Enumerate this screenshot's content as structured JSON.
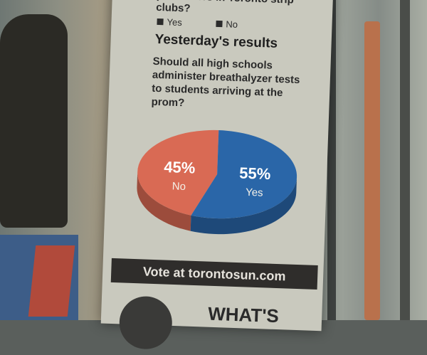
{
  "top_question": {
    "partial_text": "performers in Toronto strip clubs?",
    "options": [
      "Yes",
      "No"
    ]
  },
  "results": {
    "heading": "Yesterday's results",
    "question": "Should all high schools administer breathalyzer tests to students arriving at the prom?"
  },
  "chart_data": {
    "type": "pie",
    "categories": [
      "No",
      "Yes"
    ],
    "values": [
      45,
      55
    ],
    "labels": [
      "45%",
      "55%"
    ],
    "colors": [
      "#d96a54",
      "#2a66a8"
    ]
  },
  "footer": {
    "vote_text": "Vote at torontosun.com",
    "next_heading_partial": "WHAT'S"
  }
}
